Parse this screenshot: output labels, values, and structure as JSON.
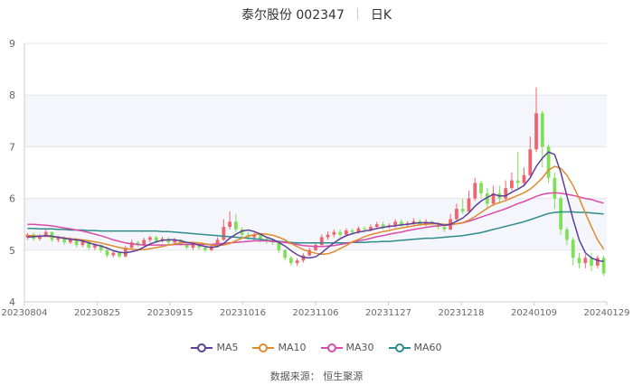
{
  "header": {
    "stock_name": "泰尔股份 002347",
    "period": "日K"
  },
  "source": {
    "label": "数据来源：",
    "provider": "恒生聚源"
  },
  "colors": {
    "up": "#f0636d",
    "down": "#7ee058",
    "grid": "#e6e6e6",
    "band": "#f4f6fb",
    "ma5": "#5b3f98",
    "ma10": "#e08a2e",
    "ma30": "#d84ba8",
    "ma60": "#2e8c8c"
  },
  "chart_data": {
    "type": "candlestick",
    "ylim": [
      4,
      9
    ],
    "y_ticks": [
      "4",
      "5",
      "6",
      "7",
      "8",
      "9"
    ],
    "x_tick_labels": [
      "20230804",
      "20230825",
      "20230915",
      "20231016",
      "20231106",
      "20231127",
      "20231218",
      "20240109",
      "20240129"
    ],
    "legend": [
      {
        "name": "MA5",
        "color": "#5b3f98"
      },
      {
        "name": "MA10",
        "color": "#e08a2e"
      },
      {
        "name": "MA30",
        "color": "#d84ba8"
      },
      {
        "name": "MA60",
        "color": "#2e8c8c"
      }
    ],
    "candles": [
      [
        5.25,
        5.3,
        5.33,
        5.2
      ],
      [
        5.3,
        5.22,
        5.34,
        5.18
      ],
      [
        5.22,
        5.28,
        5.31,
        5.18
      ],
      [
        5.28,
        5.35,
        5.4,
        5.25
      ],
      [
        5.35,
        5.2,
        5.36,
        5.16
      ],
      [
        5.2,
        5.24,
        5.28,
        5.15
      ],
      [
        5.24,
        5.15,
        5.27,
        5.1
      ],
      [
        5.15,
        5.22,
        5.25,
        5.12
      ],
      [
        5.22,
        5.1,
        5.24,
        5.05
      ],
      [
        5.1,
        5.18,
        5.2,
        5.06
      ],
      [
        5.18,
        5.05,
        5.2,
        5.0
      ],
      [
        5.05,
        5.1,
        5.12,
        5.0
      ],
      [
        5.1,
        5.0,
        5.12,
        4.95
      ],
      [
        5.0,
        4.9,
        5.05,
        4.86
      ],
      [
        4.9,
        4.95,
        5.0,
        4.86
      ],
      [
        4.95,
        4.88,
        4.98,
        4.84
      ],
      [
        4.88,
        5.05,
        5.08,
        4.86
      ],
      [
        5.05,
        5.15,
        5.2,
        5.02
      ],
      [
        5.15,
        5.1,
        5.18,
        5.06
      ],
      [
        5.1,
        5.2,
        5.24,
        5.08
      ],
      [
        5.2,
        5.25,
        5.28,
        5.15
      ],
      [
        5.25,
        5.18,
        5.28,
        5.14
      ],
      [
        5.18,
        5.22,
        5.26,
        5.15
      ],
      [
        5.22,
        5.15,
        5.25,
        5.1
      ],
      [
        5.15,
        5.2,
        5.24,
        5.12
      ],
      [
        5.2,
        5.12,
        5.22,
        5.08
      ],
      [
        5.12,
        5.05,
        5.15,
        5.02
      ],
      [
        5.05,
        5.1,
        5.14,
        5.0
      ],
      [
        5.1,
        5.05,
        5.12,
        5.0
      ],
      [
        5.05,
        5.0,
        5.08,
        4.96
      ],
      [
        5.0,
        5.08,
        5.12,
        4.98
      ],
      [
        5.08,
        5.2,
        5.25,
        5.05
      ],
      [
        5.2,
        5.45,
        5.6,
        5.18
      ],
      [
        5.45,
        5.55,
        5.75,
        5.4
      ],
      [
        5.55,
        5.4,
        5.7,
        5.35
      ],
      [
        5.4,
        5.3,
        5.45,
        5.25
      ],
      [
        5.3,
        5.25,
        5.35,
        5.2
      ],
      [
        5.25,
        5.3,
        5.34,
        5.18
      ],
      [
        5.3,
        5.22,
        5.32,
        5.15
      ],
      [
        5.22,
        5.18,
        5.25,
        5.12
      ],
      [
        5.18,
        5.15,
        5.22,
        5.1
      ],
      [
        5.15,
        5.0,
        5.18,
        4.95
      ],
      [
        5.0,
        4.85,
        5.02,
        4.8
      ],
      [
        4.85,
        4.75,
        4.88,
        4.7
      ],
      [
        4.75,
        4.8,
        4.84,
        4.7
      ],
      [
        4.8,
        4.9,
        4.94,
        4.76
      ],
      [
        4.9,
        5.0,
        5.05,
        4.88
      ],
      [
        5.0,
        5.1,
        5.15,
        4.98
      ],
      [
        5.1,
        5.25,
        5.3,
        5.08
      ],
      [
        5.25,
        5.3,
        5.36,
        5.2
      ],
      [
        5.3,
        5.35,
        5.4,
        5.25
      ],
      [
        5.35,
        5.3,
        5.4,
        5.25
      ],
      [
        5.3,
        5.38,
        5.42,
        5.26
      ],
      [
        5.38,
        5.35,
        5.42,
        5.3
      ],
      [
        5.35,
        5.42,
        5.46,
        5.32
      ],
      [
        5.42,
        5.4,
        5.46,
        5.35
      ],
      [
        5.4,
        5.45,
        5.5,
        5.36
      ],
      [
        5.45,
        5.5,
        5.55,
        5.42
      ],
      [
        5.5,
        5.45,
        5.55,
        5.4
      ],
      [
        5.45,
        5.48,
        5.52,
        5.42
      ],
      [
        5.48,
        5.55,
        5.6,
        5.44
      ],
      [
        5.55,
        5.5,
        5.6,
        5.45
      ],
      [
        5.5,
        5.52,
        5.56,
        5.46
      ],
      [
        5.52,
        5.56,
        5.62,
        5.48
      ],
      [
        5.56,
        5.5,
        5.6,
        5.46
      ],
      [
        5.5,
        5.55,
        5.6,
        5.46
      ],
      [
        5.55,
        5.52,
        5.58,
        5.48
      ],
      [
        5.52,
        5.45,
        5.55,
        5.4
      ],
      [
        5.45,
        5.4,
        5.5,
        5.35
      ],
      [
        5.4,
        5.6,
        5.7,
        5.38
      ],
      [
        5.6,
        5.8,
        5.9,
        5.55
      ],
      [
        5.8,
        5.75,
        6.0,
        5.7
      ],
      [
        5.75,
        6.0,
        6.15,
        5.72
      ],
      [
        6.0,
        6.3,
        6.4,
        5.95
      ],
      [
        6.3,
        6.1,
        6.35,
        6.0
      ],
      [
        6.1,
        5.9,
        6.2,
        5.8
      ],
      [
        5.9,
        6.1,
        6.25,
        5.85
      ],
      [
        6.1,
        6.0,
        6.25,
        5.9
      ],
      [
        6.0,
        6.2,
        6.35,
        5.95
      ],
      [
        6.2,
        6.35,
        6.5,
        6.15
      ],
      [
        6.35,
        6.3,
        6.9,
        6.2
      ],
      [
        6.3,
        6.45,
        6.6,
        6.25
      ],
      [
        6.45,
        6.95,
        7.2,
        6.4
      ],
      [
        6.95,
        7.65,
        8.15,
        6.9
      ],
      [
        7.65,
        7.0,
        7.7,
        6.6
      ],
      [
        7.0,
        6.4,
        7.05,
        6.3
      ],
      [
        6.4,
        6.0,
        6.5,
        5.8
      ],
      [
        6.0,
        5.4,
        6.05,
        5.3
      ],
      [
        5.4,
        5.2,
        5.45,
        5.1
      ],
      [
        5.2,
        4.85,
        5.25,
        4.7
      ],
      [
        4.85,
        4.75,
        4.95,
        4.65
      ],
      [
        4.75,
        4.85,
        4.92,
        4.65
      ],
      [
        4.85,
        4.7,
        4.95,
        4.6
      ],
      [
        4.7,
        4.85,
        4.9,
        4.65
      ],
      [
        4.85,
        4.55,
        4.9,
        4.5
      ]
    ],
    "ma5": [
      5.25,
      5.26,
      5.27,
      5.28,
      5.27,
      5.25,
      5.23,
      5.21,
      5.2,
      5.18,
      5.14,
      5.11,
      5.08,
      5.04,
      4.99,
      4.96,
      4.95,
      4.97,
      5.0,
      5.06,
      5.12,
      5.16,
      5.19,
      5.2,
      5.2,
      5.18,
      5.15,
      5.13,
      5.1,
      5.07,
      5.05,
      5.07,
      5.13,
      5.23,
      5.31,
      5.37,
      5.39,
      5.36,
      5.31,
      5.25,
      5.21,
      5.15,
      5.08,
      4.99,
      4.91,
      4.86,
      4.85,
      4.87,
      4.95,
      5.05,
      5.14,
      5.22,
      5.28,
      5.32,
      5.35,
      5.37,
      5.39,
      5.42,
      5.44,
      5.46,
      5.47,
      5.49,
      5.5,
      5.52,
      5.53,
      5.53,
      5.53,
      5.51,
      5.48,
      5.5,
      5.56,
      5.62,
      5.72,
      5.85,
      5.95,
      6.02,
      6.08,
      6.05,
      6.05,
      6.12,
      6.18,
      6.25,
      6.4,
      6.62,
      6.78,
      6.9,
      6.85,
      6.5,
      6.05,
      5.6,
      5.2,
      4.95,
      4.85,
      4.8,
      4.78
    ],
    "ma10": [
      5.28,
      5.28,
      5.27,
      5.27,
      5.26,
      5.25,
      5.24,
      5.22,
      5.21,
      5.2,
      5.18,
      5.16,
      5.14,
      5.11,
      5.08,
      5.05,
      5.03,
      5.02,
      5.01,
      5.01,
      5.03,
      5.05,
      5.07,
      5.1,
      5.12,
      5.14,
      5.15,
      5.15,
      5.14,
      5.12,
      5.1,
      5.09,
      5.1,
      5.13,
      5.18,
      5.23,
      5.27,
      5.3,
      5.32,
      5.31,
      5.29,
      5.25,
      5.2,
      5.13,
      5.07,
      5.01,
      4.97,
      4.94,
      4.92,
      4.93,
      4.97,
      5.03,
      5.09,
      5.16,
      5.21,
      5.26,
      5.3,
      5.33,
      5.36,
      5.38,
      5.41,
      5.43,
      5.45,
      5.47,
      5.49,
      5.5,
      5.51,
      5.51,
      5.5,
      5.5,
      5.51,
      5.53,
      5.58,
      5.65,
      5.73,
      5.81,
      5.88,
      5.92,
      5.96,
      6.01,
      6.06,
      6.11,
      6.18,
      6.28,
      6.4,
      6.55,
      6.62,
      6.58,
      6.45,
      6.25,
      6.0,
      5.72,
      5.45,
      5.2,
      5.02
    ],
    "ma30": [
      5.5,
      5.5,
      5.49,
      5.48,
      5.47,
      5.45,
      5.43,
      5.41,
      5.39,
      5.37,
      5.34,
      5.31,
      5.28,
      5.24,
      5.2,
      5.17,
      5.14,
      5.12,
      5.11,
      5.1,
      5.1,
      5.1,
      5.1,
      5.1,
      5.11,
      5.11,
      5.11,
      5.11,
      5.11,
      5.11,
      5.11,
      5.12,
      5.13,
      5.14,
      5.15,
      5.16,
      5.17,
      5.18,
      5.18,
      5.18,
      5.17,
      5.16,
      5.15,
      5.13,
      5.11,
      5.09,
      5.08,
      5.07,
      5.07,
      5.08,
      5.09,
      5.11,
      5.13,
      5.15,
      5.18,
      5.2,
      5.23,
      5.26,
      5.28,
      5.31,
      5.33,
      5.35,
      5.38,
      5.4,
      5.42,
      5.44,
      5.46,
      5.47,
      5.48,
      5.49,
      5.51,
      5.53,
      5.56,
      5.6,
      5.64,
      5.68,
      5.72,
      5.76,
      5.8,
      5.85,
      5.9,
      5.94,
      5.99,
      6.04,
      6.08,
      6.1,
      6.11,
      6.1,
      6.08,
      6.06,
      6.03,
      6.0,
      5.98,
      5.94,
      5.91
    ],
    "ma60": [
      5.42,
      5.42,
      5.41,
      5.41,
      5.41,
      5.4,
      5.4,
      5.39,
      5.39,
      5.39,
      5.38,
      5.38,
      5.37,
      5.37,
      5.37,
      5.37,
      5.37,
      5.37,
      5.37,
      5.37,
      5.37,
      5.37,
      5.36,
      5.36,
      5.35,
      5.34,
      5.33,
      5.32,
      5.31,
      5.3,
      5.29,
      5.28,
      5.27,
      5.26,
      5.25,
      5.24,
      5.23,
      5.22,
      5.21,
      5.19,
      5.18,
      5.17,
      5.16,
      5.15,
      5.14,
      5.14,
      5.14,
      5.14,
      5.14,
      5.14,
      5.14,
      5.14,
      5.14,
      5.15,
      5.15,
      5.15,
      5.16,
      5.16,
      5.17,
      5.17,
      5.18,
      5.19,
      5.2,
      5.21,
      5.22,
      5.23,
      5.23,
      5.24,
      5.25,
      5.26,
      5.27,
      5.28,
      5.3,
      5.32,
      5.34,
      5.37,
      5.4,
      5.43,
      5.46,
      5.49,
      5.52,
      5.55,
      5.59,
      5.63,
      5.67,
      5.71,
      5.73,
      5.74,
      5.74,
      5.74,
      5.73,
      5.73,
      5.72,
      5.71,
      5.7
    ]
  }
}
